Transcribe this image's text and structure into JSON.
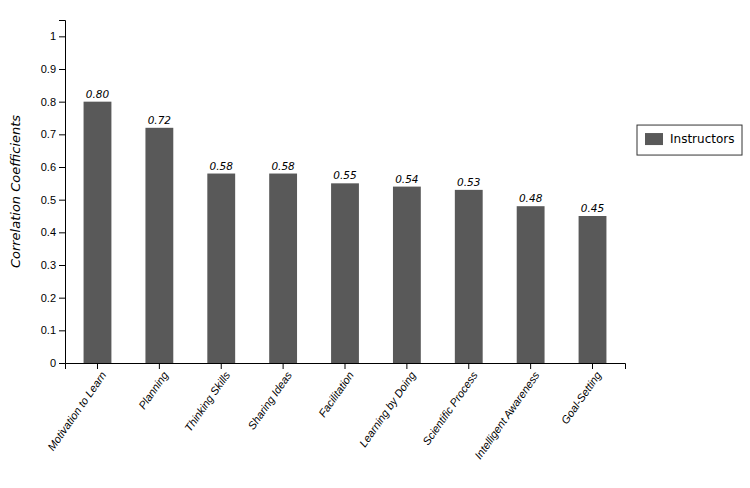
{
  "chart_data": {
    "type": "bar",
    "ylabel": "Correlation Coefficients",
    "categories": [
      "Motivation to Learn",
      "Planning",
      "Thinking Skills",
      "Sharing Ideas",
      "Facilitation",
      "Learning by Doing",
      "Scientific Process",
      "Intelligent Awareness",
      "Goal-Setting"
    ],
    "series": [
      {
        "name": "Instructors",
        "color": "#595959",
        "values": [
          0.8,
          0.72,
          0.58,
          0.58,
          0.55,
          0.54,
          0.53,
          0.48,
          0.45
        ],
        "value_labels": [
          "0.80",
          "0.72",
          "0.58",
          "0.58",
          "0.55",
          "0.54",
          "0.53",
          "0.48",
          "0.45"
        ]
      }
    ],
    "ylim": [
      0,
      1.05
    ],
    "yticks": [
      0,
      0.1,
      0.2,
      0.3,
      0.4,
      0.5,
      0.6,
      0.7,
      0.8,
      0.9,
      1
    ],
    "grid": false,
    "legend": "right",
    "data_labels": true
  }
}
